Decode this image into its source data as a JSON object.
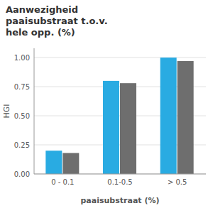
{
  "chart_data": {
    "type": "bar",
    "title": "Aanwezigheid\npaaisubstraat t.o.v.\nhele opp. (%)",
    "xlabel": "paaisubstraat (%)",
    "ylabel": "HGI",
    "categories": [
      "0 - 0.1",
      "0.1-0.5",
      "> 0.5"
    ],
    "series": [
      {
        "color": "#29ABE2",
        "values": [
          0.2,
          0.8,
          1.0
        ]
      },
      {
        "color": "#6e6e6e",
        "values": [
          0.18,
          0.78,
          0.97
        ]
      }
    ],
    "ylim": [
      0.0,
      1.08
    ],
    "yticks": [
      {
        "value": 0.0,
        "label": "0.00"
      },
      {
        "value": 0.25,
        "label": "0.25"
      },
      {
        "value": 0.5,
        "label": "0.50"
      },
      {
        "value": 0.75,
        "label": "0.75"
      },
      {
        "value": 1.0,
        "label": "1.00"
      }
    ],
    "grid": true
  }
}
